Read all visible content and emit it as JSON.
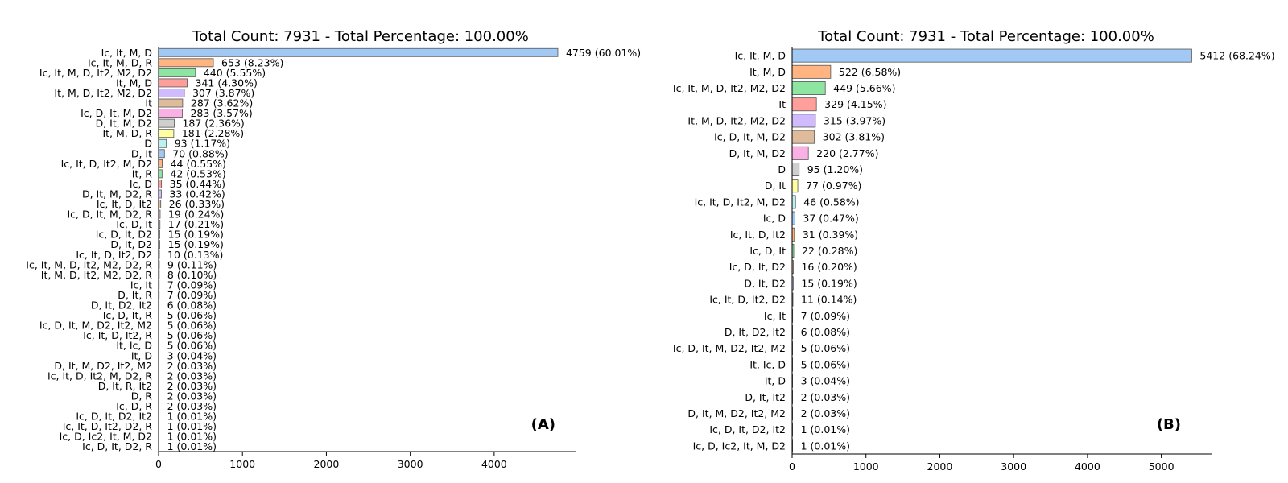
{
  "chart_data": [
    {
      "type": "bar",
      "orientation": "horizontal",
      "panel_label": "(A)",
      "title": "Total Count: 7931 - Total Percentage: 100.00%",
      "xlim": [
        0,
        4980
      ],
      "xticks": [
        "0",
        "1000",
        "2000",
        "3000",
        "4000"
      ],
      "grid": false,
      "categories": [
        "Ic, It, M, D",
        "Ic, It, M, D, R",
        "Ic, It, M, D, It2, M2, D2",
        "It, M, D",
        "It, M, D, It2, M2, D2",
        "It",
        "Ic, D, It, M, D2",
        "D, It, M, D2",
        "It, M, D, R",
        "D",
        "D, It",
        "Ic, It, D, It2, M, D2",
        "It, R",
        "Ic, D",
        "D, It, M, D2, R",
        "Ic, It, D, It2",
        "Ic, D, It, M, D2, R",
        "Ic, D, It",
        "Ic, D, It, D2",
        "D, It, D2",
        "Ic, It, D, It2, D2",
        "Ic, It, M, D, It2, M2, D2, R",
        "It, M, D, It2, M2, D2, R",
        "Ic, It",
        "D, It, R",
        "D, It, D2, It2",
        "Ic, D, It, R",
        "Ic, D, It, M, D2, It2, M2",
        "Ic, It, D, It2, R",
        "It, Ic, D",
        "It, D",
        "D, It, M, D2, It2, M2",
        "Ic, It, D, It2, M, D2, R",
        "D, It, R, It2",
        "D, R",
        "Ic, D, R",
        "Ic, D, It, D2, It2",
        "Ic, It, D, It2, D2, R",
        "Ic, D, Ic2, It, M, D2",
        "Ic, D, It, D2, R"
      ],
      "values": [
        4759,
        653,
        440,
        341,
        307,
        287,
        283,
        187,
        181,
        93,
        70,
        44,
        42,
        35,
        33,
        26,
        19,
        17,
        15,
        15,
        10,
        9,
        8,
        7,
        7,
        6,
        5,
        5,
        5,
        5,
        3,
        2,
        2,
        2,
        2,
        2,
        1,
        1,
        1,
        1
      ],
      "labels": [
        "4759 (60.01%)",
        "653 (8.23%)",
        "440 (5.55%)",
        "341 (4.30%)",
        "307 (3.87%)",
        "287 (3.62%)",
        "283 (3.57%)",
        "187 (2.36%)",
        "181 (2.28%)",
        "93 (1.17%)",
        "70 (0.88%)",
        "44 (0.55%)",
        "42 (0.53%)",
        "35 (0.44%)",
        "33 (0.42%)",
        "26 (0.33%)",
        "19 (0.24%)",
        "17 (0.21%)",
        "15 (0.19%)",
        "15 (0.19%)",
        "10 (0.13%)",
        "9 (0.11%)",
        "8 (0.10%)",
        "7 (0.09%)",
        "7 (0.09%)",
        "6 (0.08%)",
        "5 (0.06%)",
        "5 (0.06%)",
        "5 (0.06%)",
        "5 (0.06%)",
        "3 (0.04%)",
        "2 (0.03%)",
        "2 (0.03%)",
        "2 (0.03%)",
        "2 (0.03%)",
        "2 (0.03%)",
        "1 (0.01%)",
        "1 (0.01%)",
        "1 (0.01%)",
        "1 (0.01%)"
      ]
    },
    {
      "type": "bar",
      "orientation": "horizontal",
      "panel_label": "(B)",
      "title": "Total Count: 7931 - Total Percentage: 100.00%",
      "xlim": [
        0,
        5680
      ],
      "xticks": [
        "0",
        "1000",
        "2000",
        "3000",
        "4000",
        "5000"
      ],
      "grid": false,
      "categories": [
        "Ic, It, M, D",
        "It, M, D",
        "Ic, It, M, D, It2, M2, D2",
        "It",
        "It, M, D, It2, M2, D2",
        "Ic, D, It, M, D2",
        "D, It, M, D2",
        "D",
        "D, It",
        "Ic, It, D, It2, M, D2",
        "Ic, D",
        "Ic, It, D, It2",
        "Ic, D, It",
        "Ic, D, It, D2",
        "D, It, D2",
        "Ic, It, D, It2, D2",
        "Ic, It",
        "D, It, D2, It2",
        "Ic, D, It, M, D2, It2, M2",
        "It, Ic, D",
        "It, D",
        "D, It, It2",
        "D, It, M, D2, It2, M2",
        "Ic, D, It, D2, It2",
        "Ic, D, Ic2, It, M, D2"
      ],
      "values": [
        5412,
        522,
        449,
        329,
        315,
        302,
        220,
        95,
        77,
        46,
        37,
        31,
        22,
        16,
        15,
        11,
        7,
        6,
        5,
        5,
        3,
        2,
        2,
        1,
        1
      ],
      "labels": [
        "5412 (68.24%)",
        "522 (6.58%)",
        "449 (5.66%)",
        "329 (4.15%)",
        "315 (3.97%)",
        "302 (3.81%)",
        "220 (2.77%)",
        "95 (1.20%)",
        "77 (0.97%)",
        "46 (0.58%)",
        "37 (0.47%)",
        "31 (0.39%)",
        "22 (0.28%)",
        "16 (0.20%)",
        "15 (0.19%)",
        "11 (0.14%)",
        "7 (0.09%)",
        "6 (0.08%)",
        "5 (0.06%)",
        "5 (0.06%)",
        "3 (0.04%)",
        "2 (0.03%)",
        "2 (0.03%)",
        "1 (0.01%)",
        "1 (0.01%)"
      ]
    }
  ],
  "palette": [
    "#a1c9f4",
    "#ffb482",
    "#8de5a1",
    "#ff9f9b",
    "#d0bbff",
    "#debb9b",
    "#fab0e4",
    "#cfcfcf",
    "#fffea3",
    "#b9f2f0"
  ],
  "bar_edge_color": "#555555"
}
